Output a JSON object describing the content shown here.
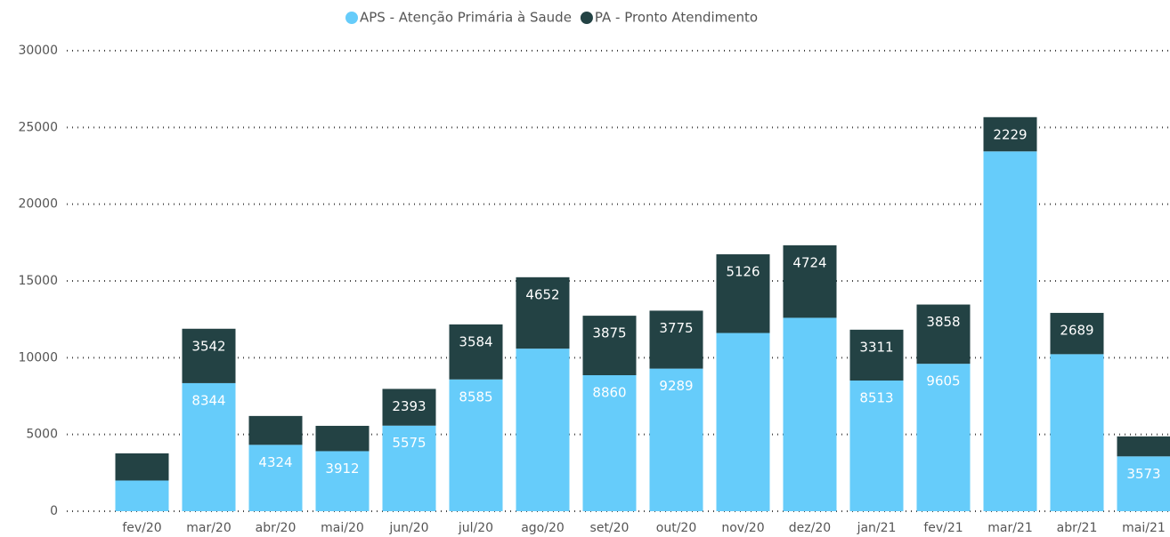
{
  "chart_data": {
    "type": "stacked_bar",
    "categories": [
      "fev/20",
      "mar/20",
      "abr/20",
      "mai/20",
      "jun/20",
      "jul/20",
      "ago/20",
      "set/20",
      "out/20",
      "nov/20",
      "dez/20",
      "jan/21",
      "fev/21",
      "mar/21",
      "abr/21",
      "mai/21"
    ],
    "series": [
      {
        "name": "APS - Atenção Primária à Saude",
        "color": "#66ccfa",
        "values": [
          2000,
          8344,
          4324,
          3912,
          5575,
          8585,
          10590,
          8860,
          9289,
          11610,
          12600,
          8513,
          9605,
          23440,
          10230,
          3573
        ],
        "value_labels": [
          null,
          "8344",
          "4324",
          "3912",
          "5575",
          "8585",
          null,
          "8860",
          "9289",
          null,
          null,
          "8513",
          "9605",
          null,
          null,
          "3573"
        ]
      },
      {
        "name": "PA - Pronto Atendimento",
        "color": "#234244",
        "values": [
          1770,
          3542,
          1880,
          1650,
          2393,
          3584,
          4652,
          3875,
          3775,
          5126,
          4724,
          3311,
          3858,
          2229,
          2689,
          1300
        ],
        "value_labels": [
          null,
          "3542",
          null,
          null,
          "2393",
          "3584",
          "4652",
          "3875",
          "3775",
          "5126",
          "4724",
          "3311",
          "3858",
          "2229",
          "2689",
          null
        ]
      }
    ],
    "ylim": [
      0,
      30000
    ],
    "yticks": [
      0,
      5000,
      10000,
      15000,
      20000,
      25000,
      30000
    ],
    "grid": true,
    "legend": "top"
  }
}
